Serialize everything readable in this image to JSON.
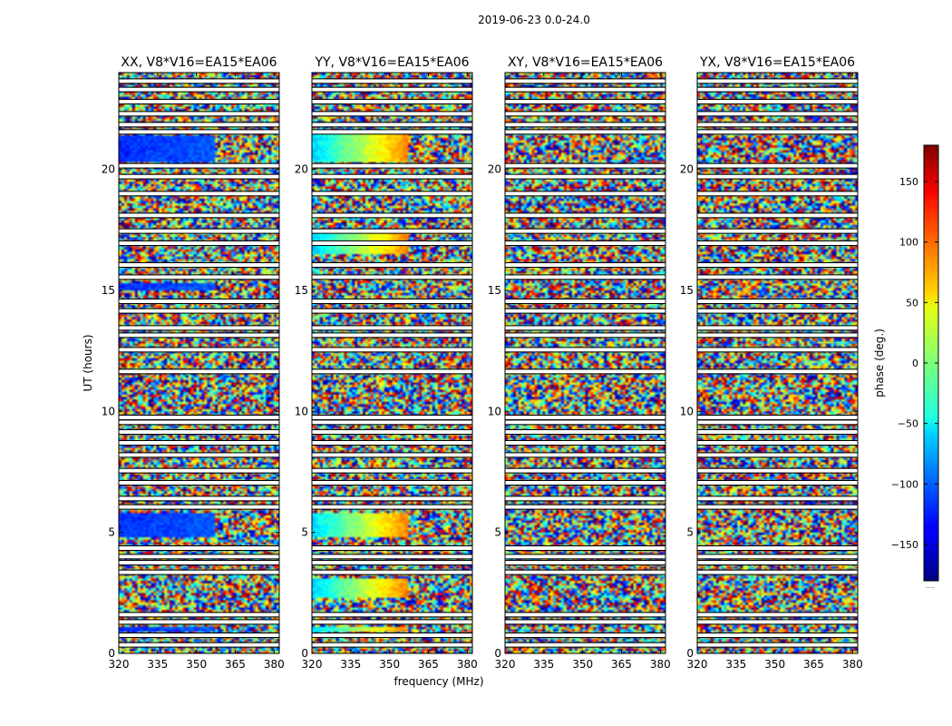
{
  "chart_data": {
    "type": "heatmap",
    "title": "2019-06-23 0.0-24.0",
    "xlabel": "frequency (MHz)",
    "ylabel": "UT (hours)",
    "xlim": [
      320,
      382
    ],
    "ylim": [
      0,
      24
    ],
    "xticks": [
      320,
      335,
      350,
      365,
      380
    ],
    "yticks": [
      0,
      5,
      10,
      15,
      20
    ],
    "panels": [
      {
        "title": "XX, V8*V16=EA15*EA06",
        "pol": "XX",
        "coherent_hours": [
          [
            0.9,
            1.1
          ],
          [
            4.8,
            5.8
          ],
          [
            15.0,
            15.3
          ],
          [
            20.3,
            21.4
          ]
        ],
        "coherent_phase": -120
      },
      {
        "title": "YY, V8*V16=EA15*EA06",
        "pol": "YY",
        "coherent_hours": [
          [
            0.9,
            1.1
          ],
          [
            2.3,
            3.1
          ],
          [
            4.8,
            5.8
          ],
          [
            16.5,
            17.4
          ],
          [
            20.3,
            21.5
          ]
        ],
        "coherent_phase": -60
      },
      {
        "title": "XY, V8*V16=EA15*EA06",
        "pol": "XY",
        "coherent_hours": [],
        "coherent_phase": 0
      },
      {
        "title": "YX, V8*V16=EA15*EA06",
        "pol": "YX",
        "coherent_hours": [],
        "coherent_phase": 0
      }
    ],
    "flagged_hours": [
      0.35,
      0.75,
      1.3,
      1.6,
      3.35,
      3.75,
      4.0,
      4.35,
      6.05,
      6.4,
      7.05,
      7.55,
      8.2,
      8.7,
      9.15,
      9.55,
      9.75,
      11.65,
      12.55,
      13.15,
      13.45,
      14.15,
      14.55,
      15.55,
      16.05,
      16.95,
      17.45,
      18.1,
      19.0,
      19.7,
      20.15,
      21.55,
      21.85,
      22.3,
      22.8,
      23.3,
      23.65
    ],
    "colorbar": {
      "label": "phase (deg.)",
      "range": [
        -180,
        180
      ],
      "ticks": [
        -150,
        -100,
        -50,
        0,
        50,
        100,
        150
      ],
      "tick_labels": [
        "−150",
        "−100",
        "−50",
        "0",
        "50",
        "100",
        "150"
      ],
      "colormap": "jet",
      "footnote": "....."
    }
  }
}
